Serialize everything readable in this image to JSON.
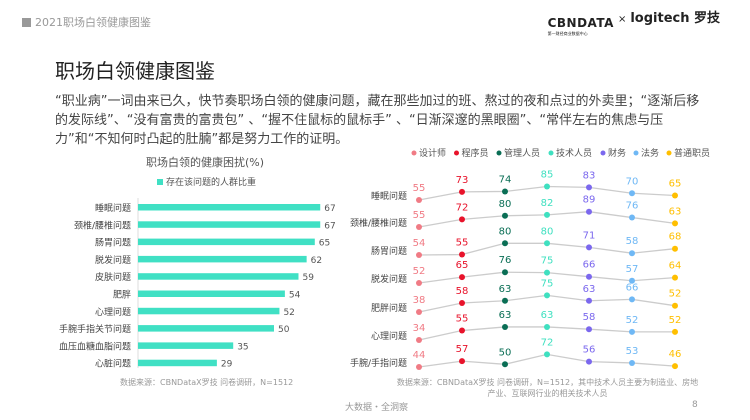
{
  "header": {
    "report_title": "2021职场白领健康图鉴",
    "logo_left": "CBNDATA",
    "logo_left_sub": "第一财经商业数据中心",
    "logo_sep": "×",
    "logo_right": "logitech 罗技"
  },
  "page_title": "职场白领健康图鉴",
  "intro": "“职业病”一词由来已久，快节奏职场白领的健康问题，藏在那些加过的班、熬过的夜和点过的外卖里；“逐渐后移的发际线”、“没有富贵的富贵包” 、“握不住鼠标的鼠标手” 、“日渐深邃的黑眼圈”、“常伴左右的焦虑与压力”和“不知何时凸起的肚腩”都是努力工作的证明。",
  "chart_data": [
    {
      "type": "bar",
      "orientation": "horizontal",
      "title": "职场白领的健康困扰(%)",
      "legend": "top",
      "series": [
        {
          "name": "存在该问题的人群比重",
          "color": "#40e0c4",
          "values": [
            67,
            67,
            65,
            62,
            59,
            54,
            52,
            50,
            35,
            29
          ]
        }
      ],
      "categories": [
        "睡眠问题",
        "颈椎/腰椎问题",
        "肠胃问题",
        "脱发问题",
        "皮肤问题",
        "肥胖",
        "心理问题",
        "手腕手指关节问题",
        "血压血糖血脂问题",
        "心脏问题"
      ],
      "source": "数据来源：CBNDataX罗技 问卷调研，N=1512"
    },
    {
      "type": "line",
      "legend": "top",
      "categories": [
        "睡眠问题",
        "颈椎/腰椎问题",
        "肠胃问题",
        "脱发问题",
        "肥胖问题",
        "心理问题",
        "手腕/手指问题"
      ],
      "series": [
        {
          "name": "设计师",
          "color": "#f07b85",
          "values": [
            55,
            55,
            54,
            52,
            38,
            34,
            44
          ]
        },
        {
          "name": "程序员",
          "color": "#e8132b",
          "values": [
            73,
            72,
            55,
            65,
            58,
            55,
            57
          ]
        },
        {
          "name": "管理人员",
          "color": "#0a6e55",
          "values": [
            74,
            80,
            80,
            76,
            63,
            63,
            50
          ]
        },
        {
          "name": "技术人员",
          "color": "#3fe0c0",
          "values": [
            85,
            82,
            80,
            75,
            75,
            63,
            72
          ]
        },
        {
          "name": "财务",
          "color": "#7b68ee",
          "values": [
            83,
            89,
            71,
            66,
            63,
            58,
            56
          ]
        },
        {
          "name": "法务",
          "color": "#6fb8f5",
          "values": [
            70,
            76,
            58,
            57,
            66,
            52,
            53
          ]
        },
        {
          "name": "普通职员",
          "color": "#ffbf00",
          "values": [
            65,
            63,
            68,
            64,
            52,
            52,
            46
          ]
        }
      ],
      "source": "数据来源：CBNDataX罗技 问卷调研，N=1512，其中技术人员主要为制造业、房地产业、互联网行业的相关技术人员"
    }
  ],
  "footer": {
    "slogan": "大数据・全洞察",
    "page": "8"
  }
}
